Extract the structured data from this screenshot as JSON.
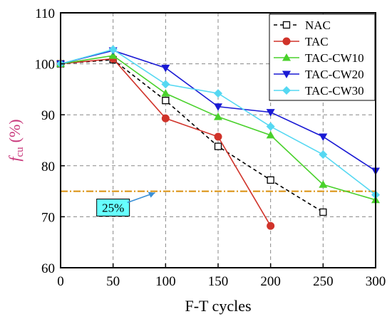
{
  "chart_data": {
    "type": "line",
    "x": [
      0,
      50,
      100,
      150,
      200,
      250,
      300
    ],
    "xlabel": "F-T cycles",
    "ylabel_main": "f",
    "ylabel_sub": "cu",
    "ylabel_unit": "(%)",
    "xlim": [
      0,
      300
    ],
    "ylim": [
      60,
      110
    ],
    "x_ticks": [
      0,
      50,
      100,
      150,
      200,
      250,
      300
    ],
    "y_ticks": [
      60,
      70,
      80,
      90,
      100,
      110
    ],
    "grid": true,
    "legend_position": "top-right",
    "reference_line": {
      "y": 75,
      "color": "#d98f0a"
    },
    "annotation": {
      "text": "25%",
      "x": 50,
      "y": 71.8,
      "box_color": "#66ffff"
    },
    "series": [
      {
        "name": "NAC",
        "x": [
          0,
          50,
          100,
          150,
          200,
          250
        ],
        "values": [
          100,
          100.8,
          92.8,
          83.8,
          77.2,
          70.9
        ],
        "color": "#000000",
        "marker": "square-open",
        "dash": true
      },
      {
        "name": "TAC",
        "x": [
          0,
          50,
          100,
          150,
          200
        ],
        "values": [
          100,
          101,
          89.3,
          85.7,
          68.2
        ],
        "color": "#d0332a",
        "marker": "circle",
        "dash": false
      },
      {
        "name": "TAC-CW10",
        "x": [
          0,
          50,
          100,
          150,
          200,
          250,
          300
        ],
        "values": [
          100,
          101.6,
          94.2,
          89.6,
          86,
          76.3,
          73.3
        ],
        "color": "#49d12b",
        "marker": "triangle-up",
        "dash": false
      },
      {
        "name": "TAC-CW20",
        "x": [
          0,
          50,
          100,
          150,
          200,
          250,
          300
        ],
        "values": [
          100,
          102.6,
          99.2,
          91.6,
          90.5,
          85.7,
          79
        ],
        "color": "#1a1ad4",
        "marker": "triangle-down",
        "dash": false
      },
      {
        "name": "TAC-CW30",
        "x": [
          0,
          50,
          100,
          150,
          200,
          250,
          300
        ],
        "values": [
          100,
          102.8,
          96,
          94.2,
          87.7,
          82.2,
          74.3
        ],
        "color": "#55d8f2",
        "marker": "diamond",
        "dash": false
      }
    ]
  }
}
